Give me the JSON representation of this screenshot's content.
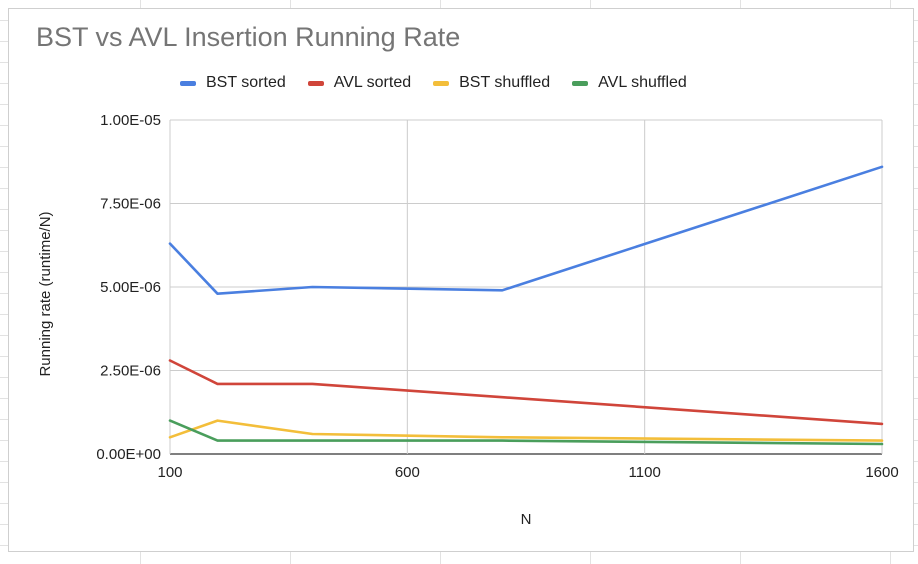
{
  "chart_data": {
    "type": "line",
    "title": "BST vs AVL Insertion Running Rate",
    "xlabel": "N",
    "ylabel": "Running rate (runtime/N)",
    "xlim": [
      100,
      1600
    ],
    "ylim": [
      0,
      1e-05
    ],
    "x_ticks": [
      100,
      600,
      1100,
      1600
    ],
    "x_tick_labels": [
      "100",
      "600",
      "1100",
      "1600"
    ],
    "y_ticks": [
      0,
      2.5e-06,
      5e-06,
      7.5e-06,
      1e-05
    ],
    "y_tick_labels": [
      "0.00E+00",
      "2.50E-06",
      "5.00E-06",
      "7.50E-06",
      "1.00E-05"
    ],
    "grid": true,
    "legend_position": "top",
    "series": [
      {
        "name": "BST sorted",
        "color": "#4a7fe0",
        "x": [
          100,
          200,
          400,
          800,
          1600
        ],
        "values": [
          6.3e-06,
          4.8e-06,
          5e-06,
          4.9e-06,
          8.6e-06
        ]
      },
      {
        "name": "AVL sorted",
        "color": "#d0453a",
        "x": [
          100,
          200,
          400,
          800,
          1600
        ],
        "values": [
          2.8e-06,
          2.1e-06,
          2.1e-06,
          1.7e-06,
          9e-07
        ]
      },
      {
        "name": "BST shuffled",
        "color": "#f3be3a",
        "x": [
          100,
          200,
          400,
          800,
          1600
        ],
        "values": [
          5e-07,
          1e-06,
          6e-07,
          5e-07,
          4e-07
        ]
      },
      {
        "name": "AVL shuffled",
        "color": "#4a9e5c",
        "x": [
          100,
          200,
          400,
          800,
          1600
        ],
        "values": [
          1e-06,
          4e-07,
          4e-07,
          4e-07,
          3e-07
        ]
      }
    ]
  }
}
